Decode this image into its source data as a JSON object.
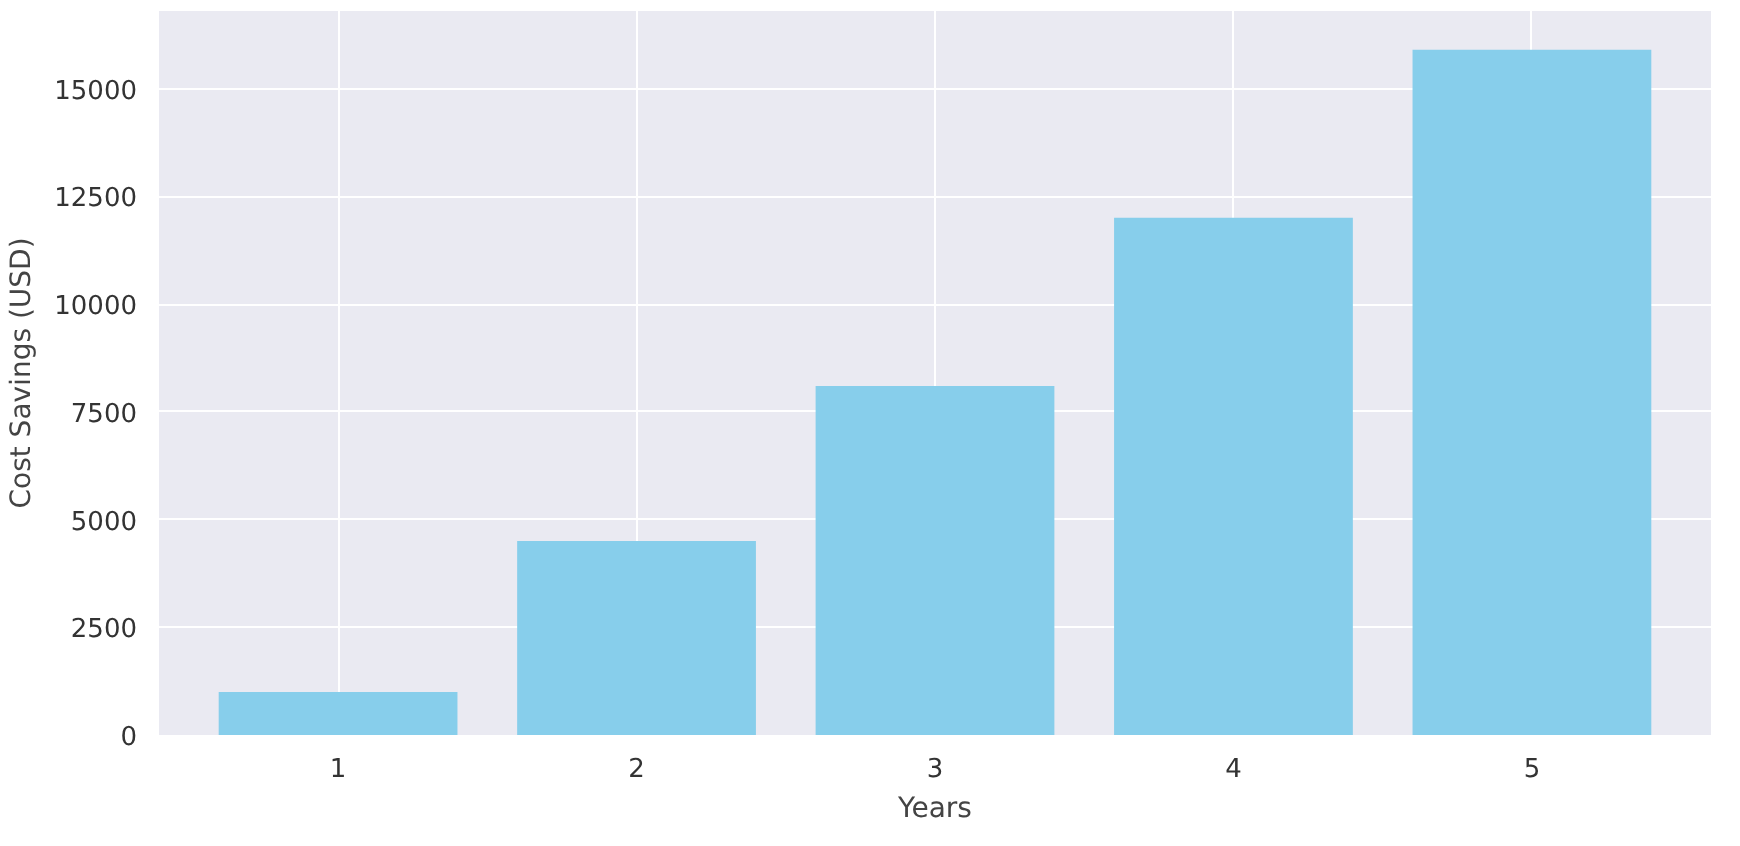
{
  "chart_data": {
    "type": "bar",
    "xlabel": "Years",
    "ylabel": "Cost Savings (USD)",
    "categories": [
      "1",
      "2",
      "3",
      "4",
      "5"
    ],
    "values": [
      1000,
      4500,
      8100,
      12000,
      15900
    ],
    "color": "#87ceeb",
    "ylim": [
      0,
      16800
    ],
    "yticks": [
      0,
      2500,
      5000,
      7500,
      10000,
      12500,
      15000
    ],
    "grid": true
  }
}
